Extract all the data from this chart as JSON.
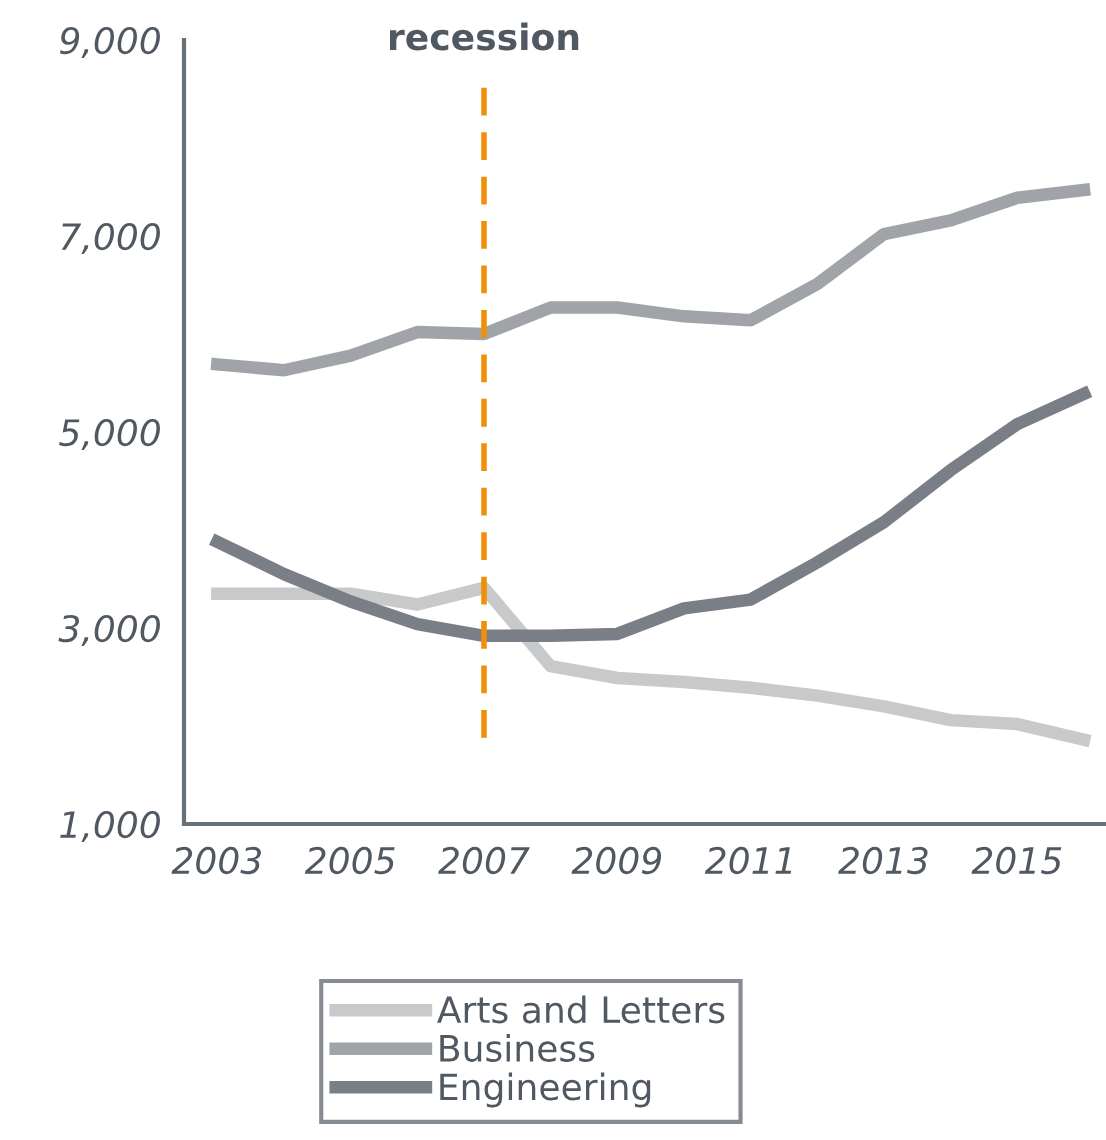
{
  "chart_data": {
    "type": "line",
    "x": [
      2003,
      2004,
      2005,
      2006,
      2007,
      2008,
      2009,
      2010,
      2011,
      2012,
      2013,
      2014,
      2015,
      2016
    ],
    "series": [
      {
        "name": "Arts and Letters",
        "color": "#c8c9cb",
        "values": [
          3350,
          3350,
          3350,
          3240,
          3410,
          2610,
          2490,
          2450,
          2390,
          2310,
          2200,
          2060,
          2020,
          1860
        ]
      },
      {
        "name": "Business",
        "color": "#a0a3a8",
        "values": [
          5690,
          5630,
          5780,
          6020,
          6000,
          6270,
          6270,
          6180,
          6140,
          6510,
          7020,
          7160,
          7390,
          7470
        ]
      },
      {
        "name": "Engineering",
        "color": "#7a7f87",
        "values": [
          3880,
          3550,
          3270,
          3040,
          2920,
          2920,
          2940,
          3200,
          3290,
          3670,
          4080,
          4610,
          5080,
          5390
        ]
      }
    ],
    "xlim": [
      2002.5,
      2016.3
    ],
    "xticks": [
      2003,
      2005,
      2007,
      2009,
      2011,
      2013,
      2015
    ],
    "ylim": [
      1000,
      9000
    ],
    "yticks": [
      {
        "value": 1000,
        "label": "1,000"
      },
      {
        "value": 3000,
        "label": "3,000"
      },
      {
        "value": 5000,
        "label": "5,000"
      },
      {
        "value": 7000,
        "label": "7,000"
      },
      {
        "value": 9000,
        "label": "9,000"
      }
    ],
    "ref_lines": [
      {
        "axis": "x",
        "value": 2007,
        "label": "recession",
        "color": "#f0900a",
        "line_style": "dashed"
      }
    ],
    "grid": false,
    "legend": "bottom",
    "marker": "none",
    "line_style": "solid"
  }
}
